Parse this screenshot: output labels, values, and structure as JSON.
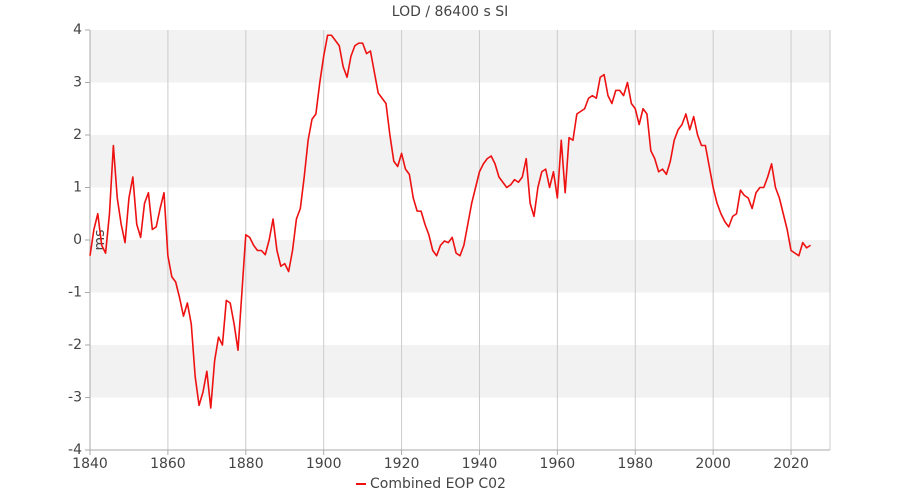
{
  "chart_data": {
    "type": "line",
    "title": "LOD / 86400 s SI",
    "y_label": "ms",
    "x": [
      1840,
      1841,
      1842,
      1843,
      1844,
      1845,
      1846,
      1847,
      1848,
      1849,
      1850,
      1851,
      1852,
      1853,
      1854,
      1855,
      1856,
      1857,
      1858,
      1859,
      1860,
      1861,
      1862,
      1863,
      1864,
      1865,
      1866,
      1867,
      1868,
      1869,
      1870,
      1871,
      1872,
      1873,
      1874,
      1875,
      1876,
      1877,
      1878,
      1879,
      1880,
      1881,
      1882,
      1883,
      1884,
      1885,
      1886,
      1887,
      1888,
      1889,
      1890,
      1891,
      1892,
      1893,
      1894,
      1895,
      1896,
      1897,
      1898,
      1899,
      1900,
      1901,
      1902,
      1903,
      1904,
      1905,
      1906,
      1907,
      1908,
      1909,
      1910,
      1911,
      1912,
      1913,
      1914,
      1915,
      1916,
      1917,
      1918,
      1919,
      1920,
      1921,
      1922,
      1923,
      1924,
      1925,
      1926,
      1927,
      1928,
      1929,
      1930,
      1931,
      1932,
      1933,
      1934,
      1935,
      1936,
      1937,
      1938,
      1939,
      1940,
      1941,
      1942,
      1943,
      1944,
      1945,
      1946,
      1947,
      1948,
      1949,
      1950,
      1951,
      1952,
      1953,
      1954,
      1955,
      1956,
      1957,
      1958,
      1959,
      1960,
      1961,
      1962,
      1963,
      1964,
      1965,
      1966,
      1967,
      1968,
      1969,
      1970,
      1971,
      1972,
      1973,
      1974,
      1975,
      1976,
      1977,
      1978,
      1979,
      1980,
      1981,
      1982,
      1983,
      1984,
      1985,
      1986,
      1987,
      1988,
      1989,
      1990,
      1991,
      1992,
      1993,
      1994,
      1995,
      1996,
      1997,
      1998,
      1999,
      2000,
      2001,
      2002,
      2003,
      2004,
      2005,
      2006,
      2007,
      2008,
      2009,
      2010,
      2011,
      2012,
      2013,
      2014,
      2015,
      2016,
      2017,
      2018,
      2019,
      2020,
      2021,
      2022,
      2023,
      2024,
      2025
    ],
    "series": [
      {
        "name": "Combined EOP C02",
        "color": "#ee1111",
        "values": [
          -0.3,
          0.2,
          0.5,
          -0.1,
          -0.25,
          0.5,
          1.8,
          0.8,
          0.3,
          -0.05,
          0.8,
          1.2,
          0.3,
          0.05,
          0.7,
          0.9,
          0.2,
          0.25,
          0.6,
          0.9,
          -0.3,
          -0.7,
          -0.8,
          -1.1,
          -1.45,
          -1.2,
          -1.6,
          -2.6,
          -3.15,
          -2.9,
          -2.5,
          -3.2,
          -2.3,
          -1.85,
          -2.0,
          -1.15,
          -1.2,
          -1.6,
          -2.1,
          -1.0,
          0.1,
          0.05,
          -0.1,
          -0.2,
          -0.2,
          -0.28,
          0.0,
          0.4,
          -0.2,
          -0.5,
          -0.45,
          -0.6,
          -0.2,
          0.4,
          0.6,
          1.2,
          1.9,
          2.3,
          2.4,
          3.0,
          3.5,
          3.9,
          3.9,
          3.8,
          3.7,
          3.3,
          3.1,
          3.5,
          3.7,
          3.75,
          3.75,
          3.55,
          3.6,
          3.2,
          2.8,
          2.7,
          2.6,
          2.0,
          1.5,
          1.4,
          1.65,
          1.35,
          1.25,
          0.8,
          0.55,
          0.55,
          0.3,
          0.1,
          -0.2,
          -0.3,
          -0.1,
          -0.02,
          -0.05,
          0.05,
          -0.25,
          -0.3,
          -0.1,
          0.3,
          0.7,
          1.0,
          1.3,
          1.45,
          1.55,
          1.6,
          1.45,
          1.2,
          1.1,
          1.0,
          1.05,
          1.15,
          1.1,
          1.2,
          1.55,
          0.7,
          0.45,
          1.0,
          1.3,
          1.35,
          1.0,
          1.3,
          0.8,
          1.9,
          0.9,
          1.95,
          1.9,
          2.4,
          2.45,
          2.5,
          2.7,
          2.75,
          2.7,
          3.1,
          3.15,
          2.75,
          2.6,
          2.85,
          2.85,
          2.75,
          3.0,
          2.6,
          2.5,
          2.2,
          2.5,
          2.4,
          1.7,
          1.55,
          1.3,
          1.35,
          1.25,
          1.5,
          1.9,
          2.1,
          2.2,
          2.4,
          2.1,
          2.35,
          2.0,
          1.8,
          1.8,
          1.4,
          1.0,
          0.7,
          0.5,
          0.35,
          0.25,
          0.45,
          0.5,
          0.95,
          0.85,
          0.8,
          0.6,
          0.9,
          1.0,
          1.0,
          1.2,
          1.45,
          1.0,
          0.8,
          0.5,
          0.2,
          -0.2,
          -0.25,
          -0.3,
          -0.05,
          -0.15,
          -0.1
        ]
      }
    ],
    "xlim": [
      1840,
      2030
    ],
    "xticks": [
      1840,
      1860,
      1880,
      1900,
      1920,
      1940,
      1960,
      1980,
      2000,
      2020
    ],
    "ylim": [
      -4,
      4
    ],
    "yticks": [
      -4,
      -3,
      -2,
      -1,
      0,
      1,
      2,
      3,
      4
    ],
    "grid": true,
    "band_color": "#f2f2f2",
    "legend": "bottom"
  }
}
